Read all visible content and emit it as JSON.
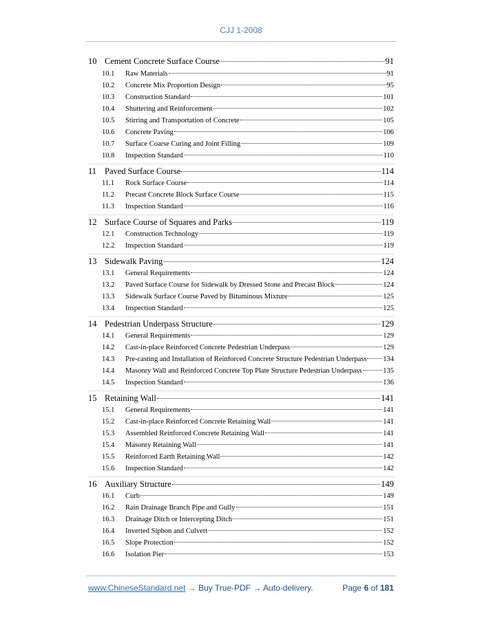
{
  "header": {
    "title": "CJJ 1-2008"
  },
  "toc": [
    {
      "number": "10",
      "title": "Cement Concrete Surface Course",
      "page": 91,
      "sections": [
        {
          "number": "10.1",
          "title": "Raw Materials",
          "page": 91
        },
        {
          "number": "10.2",
          "title": "Concrete Mix Proportion Design",
          "page": 95
        },
        {
          "number": "10.3",
          "title": "Construction Standard",
          "page": 101
        },
        {
          "number": "10.4",
          "title": "Shuttering and Reinforcement",
          "page": 102
        },
        {
          "number": "10.5",
          "title": "Stirring and Transportation of Concrete",
          "page": 105
        },
        {
          "number": "10.6",
          "title": "Concrete Paving",
          "page": 106
        },
        {
          "number": "10.7",
          "title": "Surface Coarse Curing and Joint Filling",
          "page": 109
        },
        {
          "number": "10.8",
          "title": "Inspection Standard",
          "page": 110
        }
      ]
    },
    {
      "number": "11",
      "title": "Paved Surface Course",
      "page": 114,
      "sections": [
        {
          "number": "11.1",
          "title": "Rock Surface Course",
          "page": 114
        },
        {
          "number": "11.2",
          "title": "Precast Concrete Block Surface Course",
          "page": 115
        },
        {
          "number": "11.3",
          "title": "Inspection Standard",
          "page": 116
        }
      ]
    },
    {
      "number": "12",
      "title": "Surface Course of Squares and Parks",
      "page": 119,
      "sections": [
        {
          "number": "12.1",
          "title": "Construction Technology",
          "page": 119
        },
        {
          "number": "12.2",
          "title": "Inspection Standard",
          "page": 119
        }
      ]
    },
    {
      "number": "13",
      "title": "Sidewalk Paving",
      "page": 124,
      "sections": [
        {
          "number": "13.1",
          "title": "General Requirements",
          "page": 124
        },
        {
          "number": "13.2",
          "title": "Paved Surface Course for Sidewalk by Dressed Stone and Precast Block",
          "page": 124
        },
        {
          "number": "13.3",
          "title": "Sidewalk Surface Course Paved by Bituminous Mixture",
          "page": 125
        },
        {
          "number": "13.4",
          "title": "Inspection Standard",
          "page": 125
        }
      ]
    },
    {
      "number": "14",
      "title": "Pedestrian Underpass Structure",
      "page": 129,
      "sections": [
        {
          "number": "14.1",
          "title": "General Requirements",
          "page": 129
        },
        {
          "number": "14.2",
          "title": "Cast-in-place Reinforced Concrete Pedestrian Underpass",
          "page": 129
        },
        {
          "number": "14.3",
          "title": "Pre-casting and Installation of Reinforced Concrete Structure Pedestrian Underpass",
          "page": 134
        },
        {
          "number": "14.4",
          "title": "Masonry Wall and Reinforced Concrete Top Plate Structure Pedestrian Underpass",
          "page": 135
        },
        {
          "number": "14.5",
          "title": "Inspection Standard",
          "page": 136
        }
      ]
    },
    {
      "number": "15",
      "title": "Retaining Wall",
      "page": 141,
      "sections": [
        {
          "number": "15.1",
          "title": "General Requirements",
          "page": 141
        },
        {
          "number": "15.2",
          "title": "Cast-in-place Reinforced Concrete Retaining Wall",
          "page": 141
        },
        {
          "number": "15.3",
          "title": "Assembled Reinforced Concrete Retaining Wall",
          "page": 141
        },
        {
          "number": "15.4",
          "title": "Masonry Retaining Wall",
          "page": 141
        },
        {
          "number": "15.5",
          "title": "Reinforced Earth Retaining Wall",
          "page": 142
        },
        {
          "number": "15.6",
          "title": "Inspection Standard",
          "page": 142
        }
      ]
    },
    {
      "number": "16",
      "title": "Auxiliary Structure",
      "page": 149,
      "sections": [
        {
          "number": "16.1",
          "title": "Curb",
          "page": 149
        },
        {
          "number": "16.2",
          "title": "Rain Drainage Branch Pipe and Gully",
          "page": 151
        },
        {
          "number": "16.3",
          "title": "Drainage Ditch or Intercepting Ditch",
          "page": 151
        },
        {
          "number": "16.4",
          "title": "Inverted Siphon and Culvert",
          "page": 152
        },
        {
          "number": "16.5",
          "title": "Slope Protection",
          "page": 152
        },
        {
          "number": "16.6",
          "title": "Isolation Pier",
          "page": 153
        }
      ]
    }
  ],
  "footer": {
    "link": "www.ChineseStandard.net",
    "text": "→ Buy True-PDF → Auto-delivery.",
    "page_label": "Page",
    "page": 6,
    "of": "of",
    "total": 181
  }
}
